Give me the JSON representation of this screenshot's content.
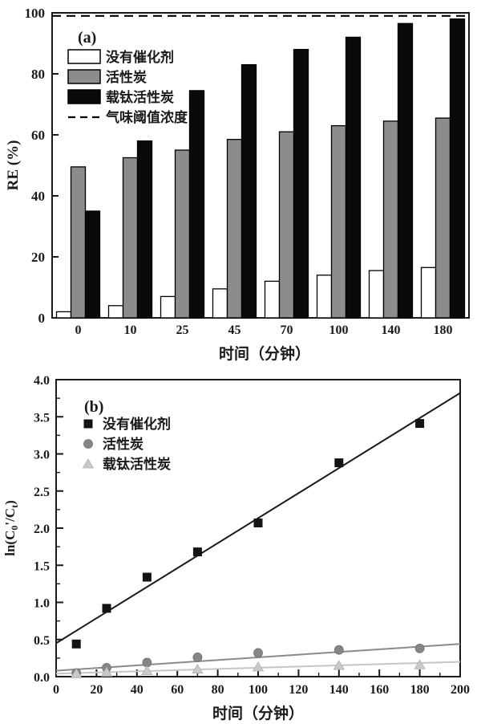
{
  "page": {
    "background": "#ffffff"
  },
  "colors": {
    "axis": "#1a1a1a",
    "legend_text": "#e8395c",
    "bar_white": "#ffffff",
    "bar_gray": "#8c8c8c",
    "bar_black": "#0a0a0a",
    "scatter_black": "#141414",
    "scatter_gray": "#868686",
    "scatter_lightgray": "#c9c9c9"
  },
  "chart_data": [
    {
      "id": "a",
      "type": "bar",
      "panel_label": "(a)",
      "title": "",
      "xlabel": "时间（分钟）",
      "ylabel": "RE (%)",
      "ylim": [
        0,
        100
      ],
      "yticks": [
        0,
        20,
        40,
        60,
        80,
        100
      ],
      "grid": false,
      "legend_position": "top-left",
      "categories": [
        "0",
        "10",
        "25",
        "45",
        "70",
        "100",
        "140",
        "180"
      ],
      "series": [
        {
          "key": "no-catalyst",
          "name": "没有催化剂",
          "fill": "#ffffff",
          "values": [
            2,
            4,
            7,
            9.5,
            12,
            14,
            15.5,
            16.5
          ]
        },
        {
          "key": "activated-carbon",
          "name": "活性炭",
          "fill": "#8c8c8c",
          "values": [
            49.5,
            52.5,
            55,
            58.5,
            61,
            63,
            64.5,
            65.5
          ]
        },
        {
          "key": "ti-activated-carbon",
          "name": "载钛活性炭",
          "fill": "#0a0a0a",
          "values": [
            35,
            58,
            74.5,
            83,
            88,
            92,
            96.5,
            98
          ]
        }
      ],
      "threshold": {
        "label": "气味阈值浓度",
        "value": 99,
        "style": "dashed"
      }
    },
    {
      "id": "b",
      "type": "scatter",
      "panel_label": "(b)",
      "title": "",
      "xlabel": "时间（分钟）",
      "ylabel_plain": "ln(C0'/Ct)",
      "ylabel_parts": [
        {
          "text": "ln(C",
          "sub": false
        },
        {
          "text": "0",
          "sub": true
        },
        {
          "text": "'/C",
          "sub": false
        },
        {
          "text": "t",
          "sub": true
        },
        {
          "text": ")",
          "sub": false
        }
      ],
      "xlim": [
        0,
        200
      ],
      "ylim": [
        0,
        4.0
      ],
      "xtick_major_step": 20,
      "xtick_minor_step": 10,
      "ytick_major_step": 0.5,
      "ytick_minor_step": 0.25,
      "grid": false,
      "legend_position": "top-left",
      "x": [
        10,
        25,
        45,
        70,
        100,
        140,
        180
      ],
      "series": [
        {
          "key": "no-catalyst",
          "name": "没有催化剂",
          "marker": "square",
          "color": "#141414",
          "line_color": "#1a1a1a",
          "values": [
            0.44,
            0.92,
            1.34,
            1.68,
            2.07,
            2.88,
            3.41
          ],
          "fit_line": {
            "x": [
              0,
              200
            ],
            "y": [
              0.45,
              3.82
            ]
          }
        },
        {
          "key": "activated-carbon",
          "name": "活性炭",
          "marker": "circle",
          "color": "#868686",
          "line_color": "#8a8a8a",
          "values": [
            0.05,
            0.12,
            0.19,
            0.26,
            0.32,
            0.36,
            0.38
          ],
          "fit_line": {
            "x": [
              0,
              200
            ],
            "y": [
              0.08,
              0.44
            ]
          }
        },
        {
          "key": "ti-activated-carbon",
          "name": "载钛活性炭",
          "marker": "triangle",
          "color": "#c9c9c9",
          "line_color": "#c5c5c5",
          "values": [
            0.04,
            0.06,
            0.08,
            0.1,
            0.13,
            0.15,
            0.16
          ],
          "fit_line": {
            "x": [
              0,
              200
            ],
            "y": [
              0.04,
              0.2
            ]
          }
        }
      ]
    }
  ]
}
